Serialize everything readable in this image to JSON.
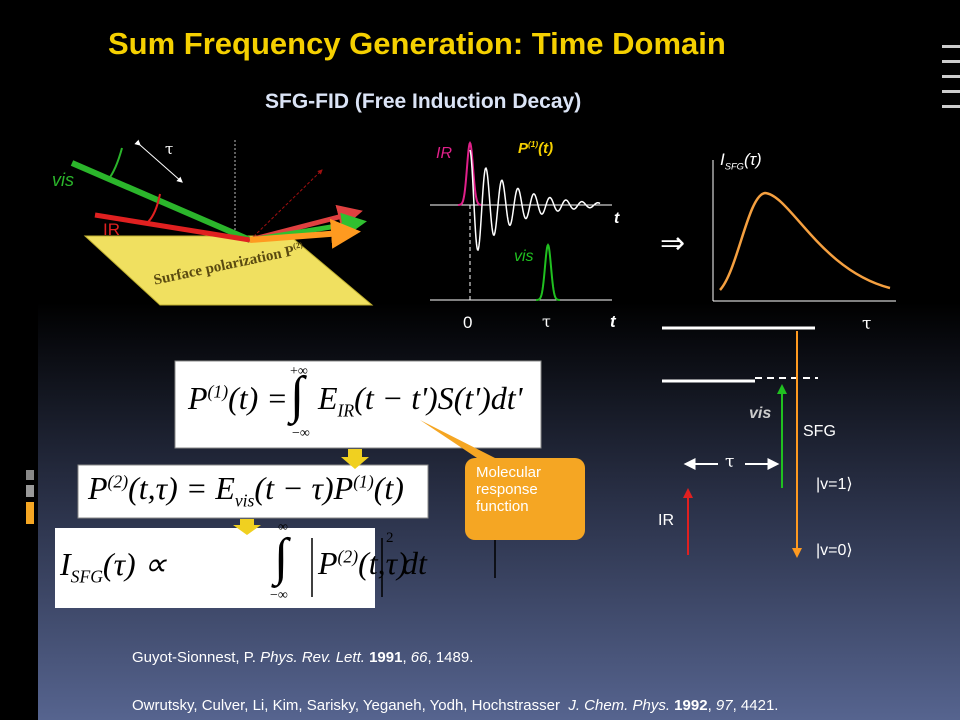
{
  "title": "Sum Frequency Generation: Time Domain",
  "subtitle": "SFG-FID (Free Induction Decay)",
  "geometry": {
    "vis": "vis",
    "ir": "IR",
    "tau": "τ",
    "surface": "Surface polarization P",
    "surface_sup": "(2)"
  },
  "time_plot": {
    "ir": "IR",
    "p": "P",
    "p_sup": "(1)",
    "p_arg": "(t)",
    "t_top": "t",
    "vis": "vis",
    "zero": "0",
    "tau": "τ",
    "t_bottom": "t"
  },
  "implies": "⇒",
  "signal_plot": {
    "i": "I",
    "sub": "SFG",
    "arg": "(τ)",
    "tau": "τ"
  },
  "levels": {
    "vis": "vis",
    "sfg": "SFG",
    "tau": "τ",
    "v1": "|v=1⟩",
    "ir": "IR",
    "v0": "|v=0⟩"
  },
  "equations": [
    {
      "lhs": "P",
      "lhs_sup": "(1)",
      "lhs_arg": "(t) =",
      "upper": "+∞",
      "lower": "−∞",
      "integral": "∫",
      "e": "E",
      "e_sub": "IR",
      "rest": "(t − t')S(t')dt'"
    },
    {
      "lhs": "P",
      "lhs_sup": "(2)",
      "lhs_arg": "(t,τ) = E",
      "e_sub": "vis",
      "mid": "(t − τ)P",
      "mid_sup": "(1)",
      "rest": "(t)"
    },
    {
      "lhs": "I",
      "lhs_sub": "SFG",
      "lhs_arg": "(τ) ∝",
      "upper": "∞",
      "lower": "−∞",
      "integral": "∫",
      "p": "P",
      "p_sup": "(2)",
      "p_arg": "(t,τ)",
      "power": "2",
      "rest": "dt"
    }
  ],
  "callout": [
    "Molecular",
    "response",
    "function"
  ],
  "references": [
    [
      "Guyot-Sionnest, P. ",
      "Phys. Rev. Lett.",
      " 1991",
      ", ",
      "66",
      ", 1489."
    ],
    [
      "Owrutsky, Culver, Li, Kim, Sarisky, Yeganeh, Yodh, Hochstrasser  ",
      "J. Chem. Phys.",
      " 1992",
      ", ",
      "97",
      ", 4421."
    ]
  ]
}
